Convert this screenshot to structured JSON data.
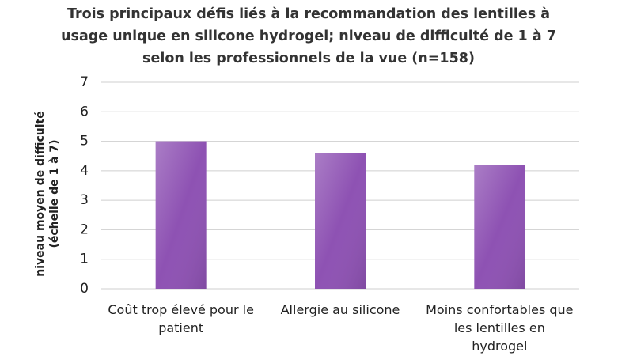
{
  "chart_data": {
    "type": "bar",
    "title": "Trois principaux défis liés à la recommandation des lentilles à usage unique en silicone hydrogel; niveau de difficulté de 1 à 7 selon les professionnels de la vue (n=158)",
    "y_label": "niveau moyen de difficulté (échelle de 1 à 7)",
    "categories": [
      "Coût trop élevé pour le patient",
      "Allergie au silicone",
      "Moins confortables que les lentilles en hydrogel"
    ],
    "values": [
      5.0,
      4.6,
      4.2
    ],
    "color": "#8e52b3",
    "ylim": [
      0,
      7
    ],
    "yticks": [
      0,
      1,
      2,
      3,
      4,
      5,
      6,
      7
    ],
    "grid": true
  }
}
